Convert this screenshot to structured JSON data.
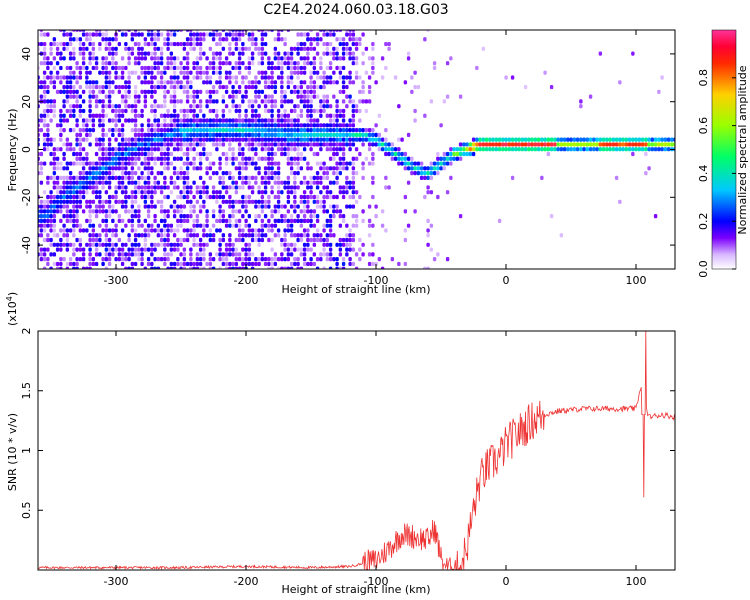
{
  "title": "C2E4.2024.060.03.18.G03",
  "chart_data": [
    {
      "type": "heatmap",
      "name": "spectrogram",
      "xlabel": "Height of straight line (km)",
      "ylabel": "Frequency (Hz)",
      "xlim": [
        -360,
        130
      ],
      "ylim": [
        -50,
        50
      ],
      "xticks": [
        -300,
        -200,
        -100,
        0,
        100
      ],
      "yticks": [
        -40,
        -20,
        0,
        20,
        40
      ],
      "grid": false,
      "dominant_frequency_trace": {
        "x": [
          -355,
          -340,
          -320,
          -300,
          -280,
          -260,
          -240,
          -220,
          -200,
          -180,
          -160,
          -140,
          -120,
          -110,
          -100,
          -90,
          -80,
          -70,
          -60,
          -50,
          -40,
          -30,
          -20,
          -10,
          0,
          20,
          40,
          60,
          80,
          100,
          120,
          130
        ],
        "y": [
          -28,
          -20,
          -12,
          -4,
          2,
          6,
          8,
          8,
          8,
          7,
          6,
          6,
          6,
          6,
          4,
          0,
          -4,
          -8,
          -10,
          -6,
          -2,
          0,
          2,
          2,
          2,
          2,
          2,
          2,
          2,
          2,
          2,
          2
        ]
      },
      "colorbar": {
        "label": "Normalized spectral amplitude",
        "range": [
          0.0,
          1.0
        ],
        "ticks": [
          0.0,
          0.2,
          0.4,
          0.6,
          0.8
        ]
      }
    },
    {
      "type": "line",
      "name": "snr",
      "xlabel": "Height of straight line (km)",
      "ylabel": "SNR (10 * v/v)",
      "scale_label": "(x10",
      "scale_exp": "4",
      "scale_close": ")",
      "xlim": [
        -360,
        130
      ],
      "ylim": [
        0,
        2.0
      ],
      "xticks": [
        -300,
        -200,
        -100,
        0,
        100
      ],
      "yticks": [
        0.5,
        1.0,
        1.5,
        2.0
      ],
      "grid": false,
      "color": "#ee3333",
      "series": [
        {
          "x": [
            -360,
            -300,
            -250,
            -200,
            -150,
            -120,
            -100,
            -90,
            -80,
            -70,
            -60,
            -55,
            -50,
            -45,
            -40,
            -35,
            -30,
            -25,
            -20,
            -15,
            -10,
            -5,
            0,
            10,
            20,
            30,
            40,
            60,
            80,
            100,
            104,
            106,
            108,
            110,
            120,
            130
          ],
          "y": [
            0.02,
            0.02,
            0.02,
            0.03,
            0.02,
            0.03,
            0.08,
            0.18,
            0.3,
            0.28,
            0.25,
            0.35,
            0.1,
            0.02,
            0.02,
            0.03,
            0.2,
            0.5,
            0.75,
            0.85,
            0.9,
            0.95,
            1.05,
            1.15,
            1.25,
            1.3,
            1.33,
            1.35,
            1.35,
            1.35,
            1.55,
            0.25,
            1.35,
            1.28,
            1.3,
            1.28
          ]
        }
      ]
    }
  ]
}
